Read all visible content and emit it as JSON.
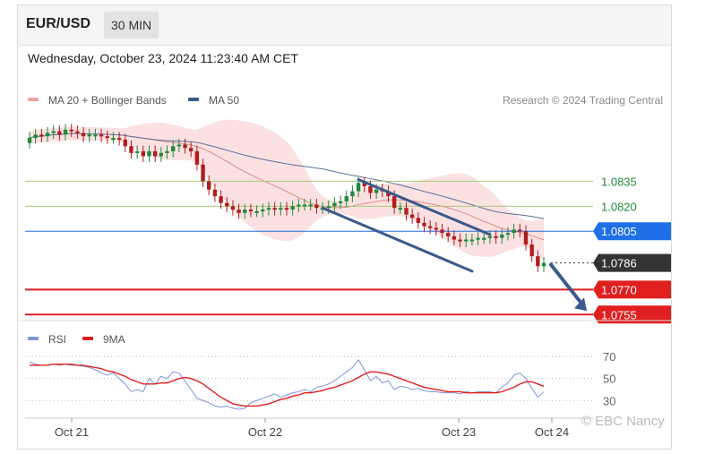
{
  "header": {
    "pair": "EUR/USD",
    "interval": "30 MIN"
  },
  "datetime": "Wednesday, October 23, 2024 11:23:40 AM CET",
  "legend": {
    "ma20": "MA 20 + Bollinger Bands",
    "ma50": "MA 50",
    "source": "Research © 2024 Trading Central",
    "rsi": "RSI",
    "ma9": "9MA"
  },
  "colors": {
    "up": "#1f8a3a",
    "down": "#b11d1d",
    "band": "#f7c9c9",
    "ma20": "#e08a8a",
    "ma50": "#5b6f9a",
    "channel": "#3b5a8c",
    "green_level": "#a8c878",
    "blue_level": "#1e6fe8",
    "red_level": "#e01f1f",
    "current": "#333333",
    "rsi": "#7f96d8",
    "ma9": "#e02020"
  },
  "watermark": "© EBC Nancy",
  "chart_data": [
    {
      "type": "candlestick",
      "title": "EUR/USD 30 MIN",
      "x_ticks": [
        "Oct 21",
        "Oct 22",
        "Oct 23",
        "Oct 24"
      ],
      "ylim": [
        1.0753,
        1.0875
      ],
      "levels": [
        {
          "value": 1.0835,
          "label": "1.0835",
          "style": "green-resistance"
        },
        {
          "value": 1.082,
          "label": "1.0820",
          "style": "green-resistance"
        },
        {
          "value": 1.0805,
          "label": "1.0805",
          "style": "blue-pivot"
        },
        {
          "value": 1.0786,
          "label": "1.0786",
          "style": "current-price"
        },
        {
          "value": 1.077,
          "label": "1.0770",
          "style": "red-support"
        },
        {
          "value": 1.0755,
          "label": "1.0755",
          "style": "red-support"
        }
      ],
      "channel": {
        "upper": [
          [
            55,
            1.0836
          ],
          [
            77,
            1.0803
          ]
        ],
        "lower": [
          [
            49,
            1.0819
          ],
          [
            74,
            1.0781
          ]
        ]
      },
      "projection": {
        "from": 1.0785,
        "to": 1.0755
      },
      "close": [
        1.0861,
        1.0863,
        1.0862,
        1.0864,
        1.0865,
        1.0863,
        1.0866,
        1.0865,
        1.0864,
        1.0862,
        1.0863,
        1.0863,
        1.0862,
        1.0861,
        1.0861,
        1.086,
        1.0856,
        1.0852,
        1.0853,
        1.085,
        1.0853,
        1.085,
        1.0852,
        1.0853,
        1.0856,
        1.0857,
        1.0855,
        1.0853,
        1.0845,
        1.0835,
        1.083,
        1.0826,
        1.0822,
        1.082,
        1.0818,
        1.0816,
        1.0818,
        1.0817,
        1.0817,
        1.0818,
        1.0819,
        1.0818,
        1.0819,
        1.0818,
        1.082,
        1.0821,
        1.0821,
        1.0821,
        1.0819,
        1.0819,
        1.082,
        1.0822,
        1.0823,
        1.0826,
        1.0829,
        1.0834,
        1.0832,
        1.0828,
        1.083,
        1.0829,
        1.0826,
        1.0819,
        1.0819,
        1.0815,
        1.0813,
        1.081,
        1.0808,
        1.0807,
        1.0806,
        1.0804,
        1.0802,
        1.08,
        1.0799,
        1.08,
        1.08,
        1.0801,
        1.0801,
        1.0802,
        1.0801,
        1.0803,
        1.0804,
        1.0806,
        1.0805,
        1.0797,
        1.079,
        1.0784,
        1.0786
      ]
    },
    {
      "type": "line",
      "title": "RSI",
      "ylim": [
        18,
        75
      ],
      "y_ticks": [
        30,
        50,
        70
      ],
      "series": [
        {
          "name": "RSI",
          "values": [
            65,
            63,
            62,
            62,
            63,
            62,
            63,
            62,
            62,
            61,
            60,
            58,
            55,
            53,
            55,
            50,
            45,
            38,
            40,
            38,
            50,
            45,
            52,
            50,
            56,
            55,
            48,
            40,
            32,
            30,
            28,
            25,
            24,
            25,
            23,
            22,
            23,
            28,
            30,
            32,
            34,
            36,
            33,
            35,
            37,
            38,
            40,
            38,
            42,
            43,
            45,
            48,
            52,
            56,
            60,
            67,
            58,
            48,
            52,
            46,
            48,
            40,
            43,
            42,
            40,
            41,
            39,
            38,
            38,
            37,
            37,
            37,
            36,
            38,
            37,
            38,
            38,
            38,
            37,
            42,
            46,
            53,
            55,
            50,
            41,
            33,
            38
          ]
        },
        {
          "name": "9MA",
          "values": [
            62,
            62,
            62,
            62,
            63,
            63,
            63,
            63,
            62,
            62,
            61,
            60,
            59,
            57,
            56,
            54,
            52,
            49,
            47,
            45,
            45,
            45,
            46,
            46,
            48,
            50,
            51,
            50,
            48,
            45,
            41,
            37,
            33,
            30,
            27,
            26,
            25,
            25,
            25,
            26,
            27,
            29,
            31,
            32,
            34,
            35,
            37,
            37,
            38,
            39,
            41,
            42,
            44,
            46,
            48,
            51,
            54,
            56,
            56,
            55,
            54,
            52,
            50,
            48,
            46,
            44,
            42,
            41,
            40,
            39,
            38,
            38,
            38,
            37,
            37,
            37,
            37,
            37,
            37,
            38,
            40,
            42,
            45,
            47,
            47,
            45,
            43
          ]
        }
      ]
    }
  ]
}
